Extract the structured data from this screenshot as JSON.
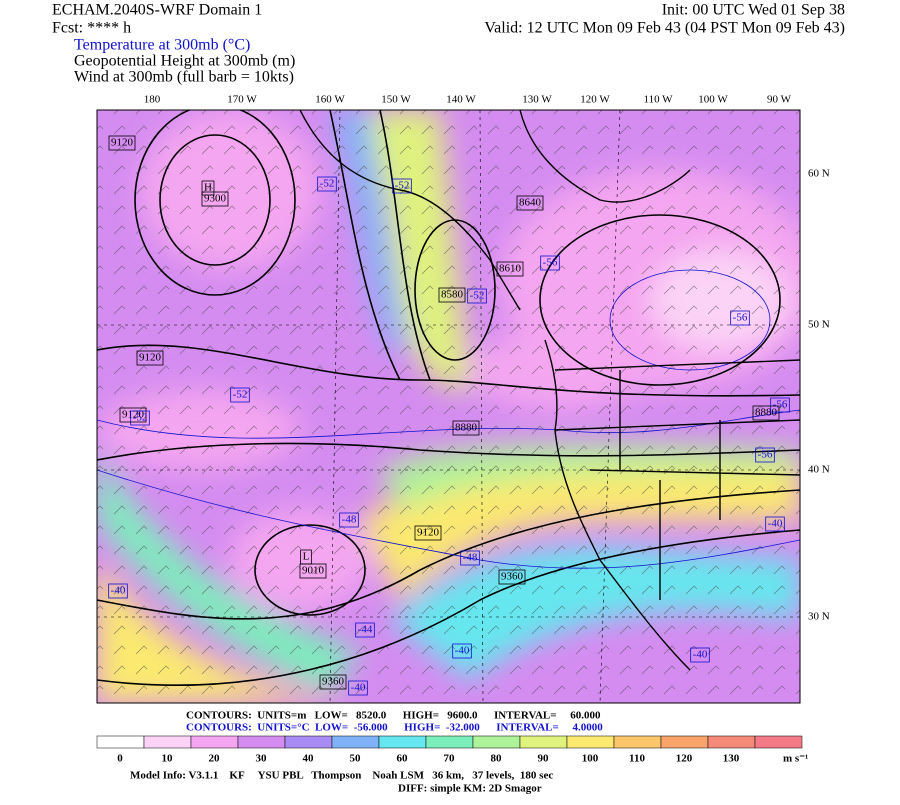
{
  "header": {
    "model": "ECHAM.2040S-WRF Domain 1",
    "init": "Init: 00 UTC Wed 01 Sep 38",
    "fcst": "Fcst: **** h",
    "valid": "Valid: 12 UTC Mon 09 Feb 43 (04 PST Mon 09 Feb 43)",
    "fields": [
      "Temperature at 300mb (°C)",
      "Geopotential Height at 300mb (m)",
      "Wind at 300mb (full barb = 10kts)"
    ]
  },
  "map": {
    "longitudes": [
      "180",
      "170 W",
      "160 W",
      "150 W",
      "140 W",
      "130 W",
      "120 W",
      "110 W",
      "100 W",
      "90 W"
    ],
    "latitudes": [
      "60 N",
      "50 N",
      "40 N",
      "30 N"
    ],
    "centers": [
      "H",
      "L"
    ],
    "height_labels": [
      "9120",
      "9300",
      "9120",
      "9120",
      "8640",
      "8610",
      "8580",
      "8880",
      "9120",
      "9010",
      "9360",
      "8880",
      "9360"
    ],
    "temp_labels": [
      "-52",
      "-52",
      "-56",
      "-52",
      "-56",
      "-52",
      "-52",
      "-56",
      "-56",
      "-48",
      "-48",
      "-44",
      "-40",
      "-40",
      "-40",
      "-40",
      "-40"
    ]
  },
  "contour_info": [
    "CONTOURS:  UNITS=m   LOW=   8520.0      HIGH=   9600.0      INTERVAL=     60.000",
    "CONTOURS:  UNITS=°C  LOW=  -56.000      HIGH=  -32.000      INTERVAL=     4.0000"
  ],
  "colorbar": {
    "ticks": [
      "0",
      "10",
      "20",
      "30",
      "40",
      "50",
      "60",
      "70",
      "80",
      "90",
      "100",
      "110",
      "120",
      "130"
    ],
    "units": "m s⁻¹",
    "colors": [
      "#ffffff",
      "#fbd3f6",
      "#f4a6f0",
      "#d48cf0",
      "#a98cf3",
      "#7fb2f7",
      "#66e6ee",
      "#7beebb",
      "#aef29a",
      "#dff27e",
      "#fbe970",
      "#fbc66c",
      "#f8a46a",
      "#f58a78",
      "#f47a88"
    ]
  },
  "footer": [
    "Model Info: V3.1.1    KF     YSU PBL   Thompson    Noah LSM   36 km,   37 levels,  180 sec",
    "DIFF: simple KM: 2D Smagor"
  ]
}
